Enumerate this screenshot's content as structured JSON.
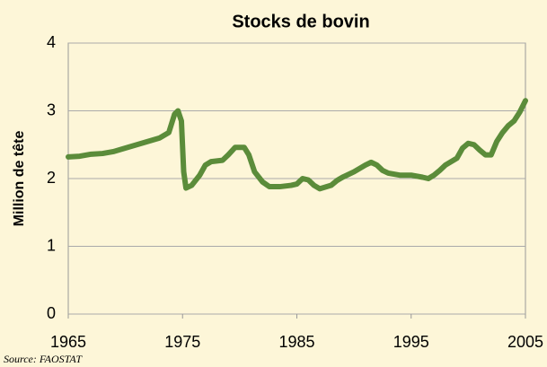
{
  "chart_data": {
    "type": "line",
    "title": "Stocks de bovin",
    "y_label": "Million de tête",
    "source": "Source: FAOSTAT",
    "x": [
      1965,
      1966,
      1967,
      1968,
      1969,
      1970,
      1971,
      1972,
      1973,
      1973.8,
      1974.3,
      1974.6,
      1974.9,
      1975.1,
      1975.3,
      1975.8,
      1976.5,
      1977,
      1977.5,
      1978.5,
      1979,
      1979.6,
      1980.4,
      1980.8,
      1981.3,
      1982,
      1982.6,
      1983.5,
      1984.5,
      1985,
      1985.5,
      1986,
      1986.5,
      1987,
      1988,
      1988.5,
      1989,
      1990,
      1991,
      1991.5,
      1992,
      1992.5,
      1993,
      1994,
      1995,
      1996,
      1996.5,
      1997,
      1997.5,
      1998,
      1999,
      1999.5,
      2000,
      2000.5,
      2001,
      2001.5,
      2002,
      2002.5,
      2003,
      2003.5,
      2004,
      2004.5,
      2005
    ],
    "series": [
      {
        "name": "Stocks de bovin",
        "color": "#5b8c3a",
        "values": [
          2.32,
          2.33,
          2.36,
          2.37,
          2.4,
          2.45,
          2.5,
          2.55,
          2.6,
          2.68,
          2.95,
          3.0,
          2.85,
          2.1,
          1.86,
          1.9,
          2.05,
          2.2,
          2.25,
          2.27,
          2.35,
          2.46,
          2.46,
          2.35,
          2.1,
          1.95,
          1.88,
          1.88,
          1.9,
          1.92,
          2.0,
          1.98,
          1.9,
          1.85,
          1.9,
          1.97,
          2.02,
          2.1,
          2.2,
          2.24,
          2.2,
          2.12,
          2.08,
          2.05,
          2.05,
          2.02,
          2.0,
          2.05,
          2.12,
          2.2,
          2.3,
          2.45,
          2.52,
          2.5,
          2.42,
          2.35,
          2.35,
          2.55,
          2.68,
          2.78,
          2.85,
          2.98,
          3.15
        ]
      }
    ],
    "xlim": [
      1965,
      2005
    ],
    "xticks": [
      1965,
      1975,
      1985,
      1995,
      2005
    ],
    "ylim": [
      0,
      4
    ],
    "yticks": [
      0,
      1,
      2,
      3,
      4
    ],
    "grid": true
  }
}
